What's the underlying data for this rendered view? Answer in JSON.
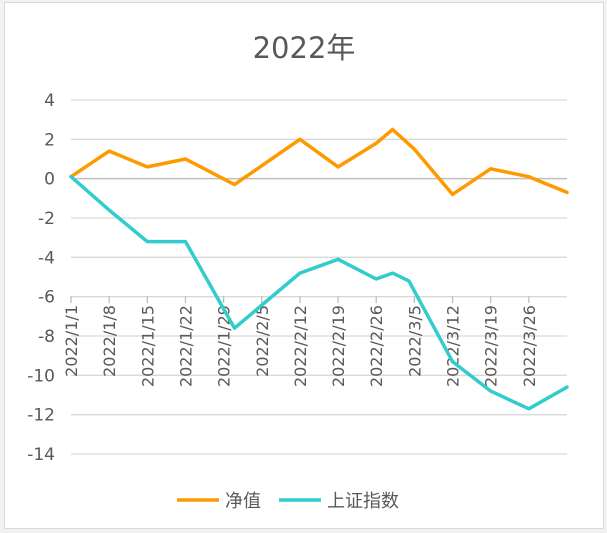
{
  "chart_data": {
    "type": "line",
    "title": "2022年",
    "xlabel": "",
    "ylabel": "",
    "ylim": [
      -14,
      4
    ],
    "y_ticks": [
      4,
      2,
      0,
      -2,
      -4,
      -6,
      -8,
      -10,
      -12,
      -14
    ],
    "y_tick_labels": [
      "4",
      "2",
      "0",
      "-2",
      "-4",
      "-6",
      "-8",
      "-10",
      "-12",
      "-14"
    ],
    "grid": true,
    "legend": "bottom",
    "x_tick_labels": [
      "2022/1/1",
      "2022/1/8",
      "2022/1/15",
      "2022/1/22",
      "2022/1/29",
      "2022/2/5",
      "2022/2/12",
      "2022/2/19",
      "2022/2/26",
      "2022/3/5",
      "2022/3/12",
      "2022/3/19",
      "2022/3/26"
    ],
    "x_tick_dates": [
      "2022-01-01",
      "2022-01-08",
      "2022-01-15",
      "2022-01-22",
      "2022-01-29",
      "2022-02-05",
      "2022-02-12",
      "2022-02-19",
      "2022-02-26",
      "2022-03-05",
      "2022-03-12",
      "2022-03-19",
      "2022-03-26"
    ],
    "x_range": [
      "2022-01-01",
      "2022-04-02"
    ],
    "series": [
      {
        "name": "净值",
        "color": "#FF9900",
        "points": [
          {
            "x": "2022-01-01",
            "y": 0.1
          },
          {
            "x": "2022-01-08",
            "y": 1.4
          },
          {
            "x": "2022-01-15",
            "y": 0.6
          },
          {
            "x": "2022-01-22",
            "y": 1.0
          },
          {
            "x": "2022-01-31",
            "y": -0.3
          },
          {
            "x": "2022-02-12",
            "y": 2.0
          },
          {
            "x": "2022-02-19",
            "y": 0.6
          },
          {
            "x": "2022-02-26",
            "y": 1.8
          },
          {
            "x": "2022-03-01",
            "y": 2.5
          },
          {
            "x": "2022-03-05",
            "y": 1.5
          },
          {
            "x": "2022-03-12",
            "y": -0.8
          },
          {
            "x": "2022-03-19",
            "y": 0.5
          },
          {
            "x": "2022-03-26",
            "y": 0.1
          },
          {
            "x": "2022-04-02",
            "y": -0.7
          }
        ]
      },
      {
        "name": "上证指数",
        "color": "#33CCCC",
        "points": [
          {
            "x": "2022-01-01",
            "y": 0.1
          },
          {
            "x": "2022-01-08",
            "y": -1.6
          },
          {
            "x": "2022-01-15",
            "y": -3.2
          },
          {
            "x": "2022-01-22",
            "y": -3.2
          },
          {
            "x": "2022-01-31",
            "y": -7.6
          },
          {
            "x": "2022-02-12",
            "y": -4.8
          },
          {
            "x": "2022-02-19",
            "y": -4.1
          },
          {
            "x": "2022-02-26",
            "y": -5.1
          },
          {
            "x": "2022-03-01",
            "y": -4.8
          },
          {
            "x": "2022-03-04",
            "y": -5.2
          },
          {
            "x": "2022-03-12",
            "y": -9.3
          },
          {
            "x": "2022-03-19",
            "y": -10.8
          },
          {
            "x": "2022-03-26",
            "y": -11.7
          },
          {
            "x": "2022-04-02",
            "y": -10.6
          }
        ]
      }
    ]
  }
}
